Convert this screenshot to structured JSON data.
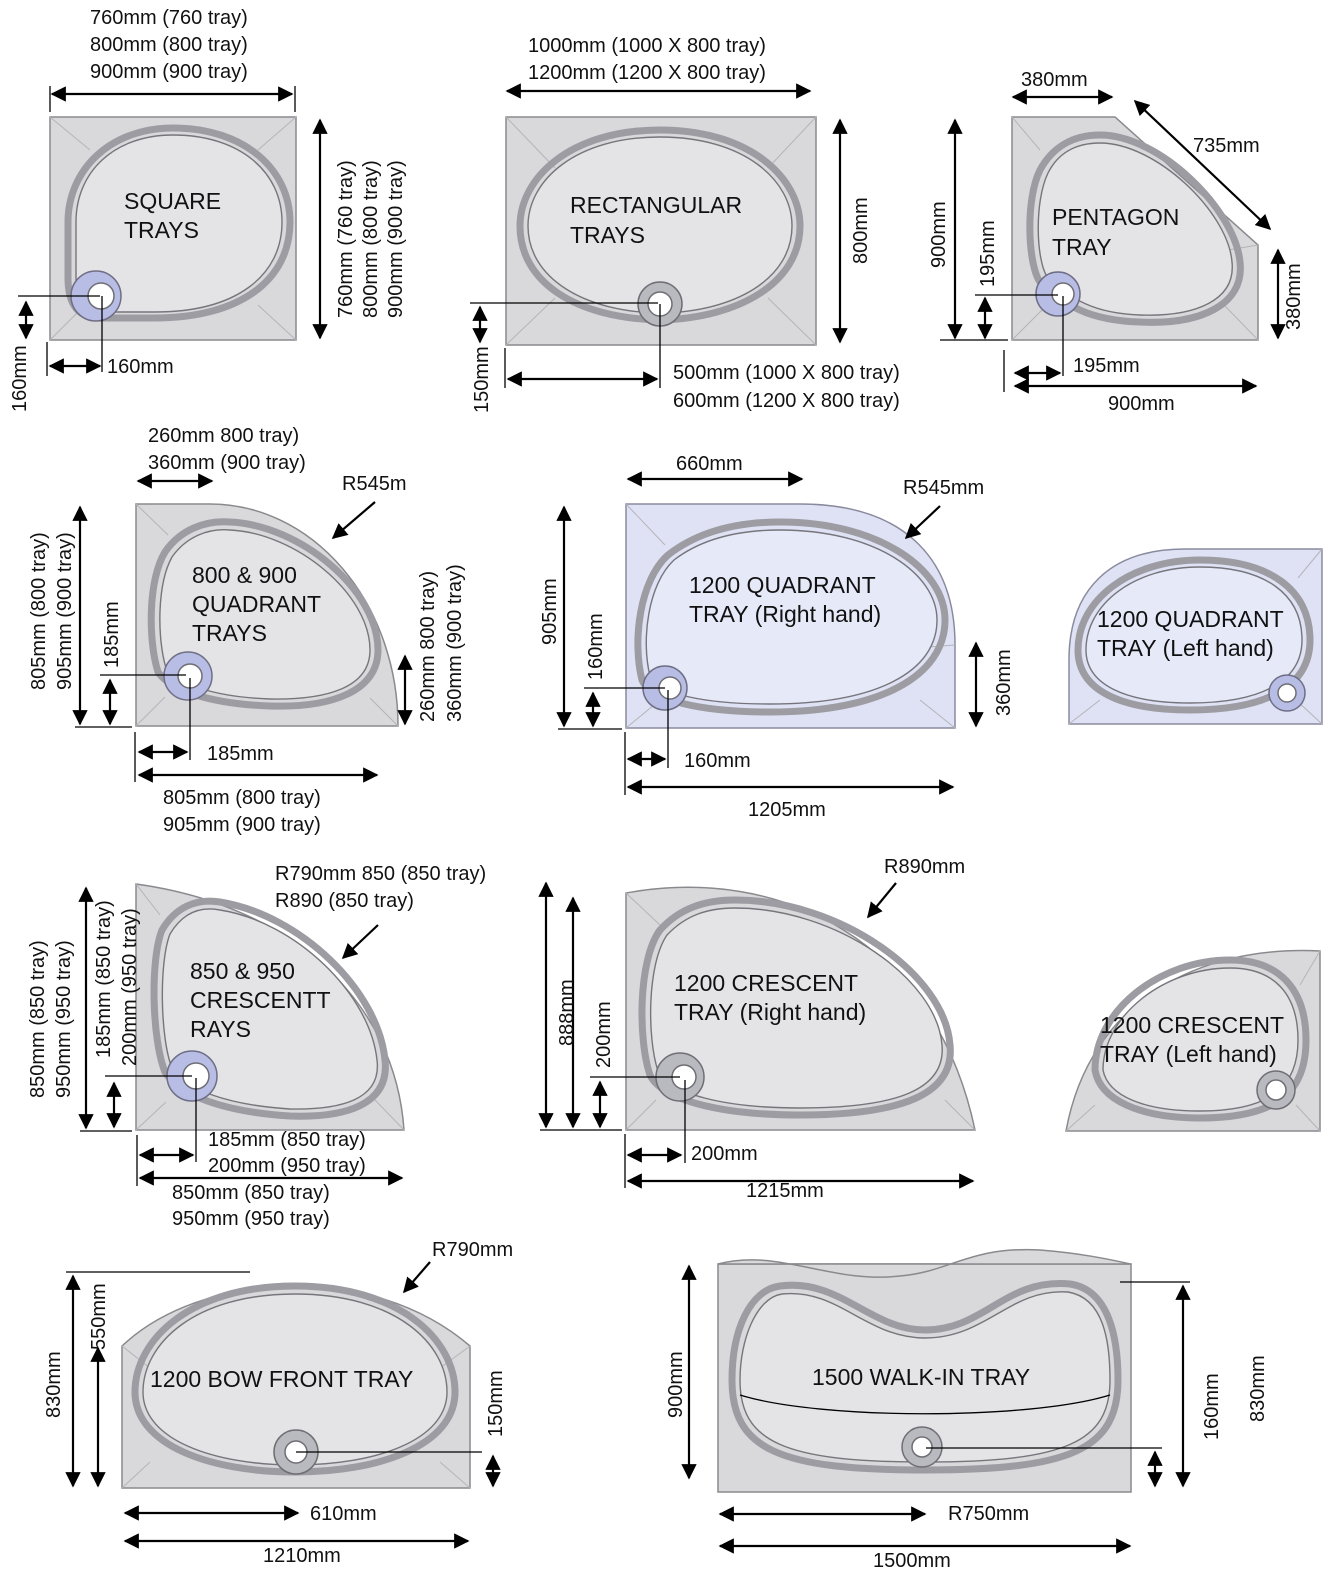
{
  "square": {
    "title_l1": "SQUARE",
    "title_l2": "TRAYS",
    "width_l1": "760mm (760 tray)",
    "width_l2": "800mm (800 tray)",
    "width_l3": "900mm (900 tray)",
    "height_l1": "760mm (760 tray)",
    "height_l2": "800mm (800 tray)",
    "height_l3": "900mm (900 tray)",
    "waste_y": "160mm",
    "waste_x": "160mm"
  },
  "rectangular": {
    "title_l1": "RECTANGULAR",
    "title_l2": "TRAYS",
    "width_l1": "1000mm (1000 X 800 tray)",
    "width_l2": "1200mm (1200 X 800 tray)",
    "height": "800mm",
    "waste_y": "150mm",
    "waste_x_l1": "500mm (1000 X 800 tray)",
    "waste_x_l2": "600mm (1200 X 800 tray)"
  },
  "pentagon": {
    "title_l1": "PENTAGON",
    "title_l2": "TRAY",
    "top": "380mm",
    "diagonal": "735mm",
    "side": "380mm",
    "height": "900mm",
    "waste_y": "195mm",
    "waste_x": "195mm",
    "width": "900mm"
  },
  "quadrant800": {
    "title_l1": "800 & 900",
    "title_l2": "QUADRANT",
    "title_l3": "TRAYS",
    "top_l1": "260mm 800 tray)",
    "top_l2": "360mm (900 tray)",
    "radius": "R545m",
    "height_l1": "805mm (800 tray)",
    "height_l2": "905mm (900 tray)",
    "waste_y": "185mm",
    "side_l1": "260mm 800 tray)",
    "side_l2": "360mm (900 tray)",
    "waste_x": "185mm",
    "width_l1": "805mm (800 tray)",
    "width_l2": "905mm (900 tray)"
  },
  "quadrant1200r": {
    "title_l1": "1200 QUADRANT",
    "title_l2": "TRAY (Right hand)",
    "top": "660mm",
    "radius": "R545mm",
    "height": "905mm",
    "waste_y": "160mm",
    "side": "360mm",
    "waste_x": "160mm",
    "width": "1205mm"
  },
  "quadrant1200l": {
    "title_l1": "1200 QUADRANT",
    "title_l2": "TRAY (Left hand)"
  },
  "crescent850": {
    "title_l1": "850 & 950",
    "title_l2": "CRESCENTT",
    "title_l3": "RAYS",
    "radius_l1": "R790mm 850 (850 tray)",
    "radius_l2": "R890 (850 tray)",
    "height_l1": "850mm (850 tray)",
    "height_l2": "950mm (950 tray)",
    "waste_y_l1": "185mm (850 tray)",
    "waste_y_l2": "200mm (950 tray)",
    "waste_x_l1": "185mm (850 tray)",
    "waste_x_l2": "200mm (950 tray)",
    "width_l1": "850mm (850 tray)",
    "width_l2": "950mm (950 tray)"
  },
  "crescent1200r": {
    "title_l1": "1200 CRESCENT",
    "title_l2": "TRAY (Right hand)",
    "radius": "R890mm",
    "height": "888mm",
    "waste_y": "200mm",
    "waste_x": "200mm",
    "width": "1215mm"
  },
  "crescent1200l": {
    "title_l1": "1200 CRESCENT",
    "title_l2": "TRAY (Left hand)"
  },
  "bowfront": {
    "title": "1200 BOW FRONT TRAY",
    "radius": "R790mm",
    "height": "830mm",
    "inner_height": "550mm",
    "waste_y": "150mm",
    "waste_x": "610mm",
    "width": "1210mm"
  },
  "walkin": {
    "title": "1500 WALK-IN TRAY",
    "height": "900mm",
    "waste_y": "160mm",
    "height_right": "830mm",
    "radius": "R750mm",
    "width": "1500mm"
  }
}
